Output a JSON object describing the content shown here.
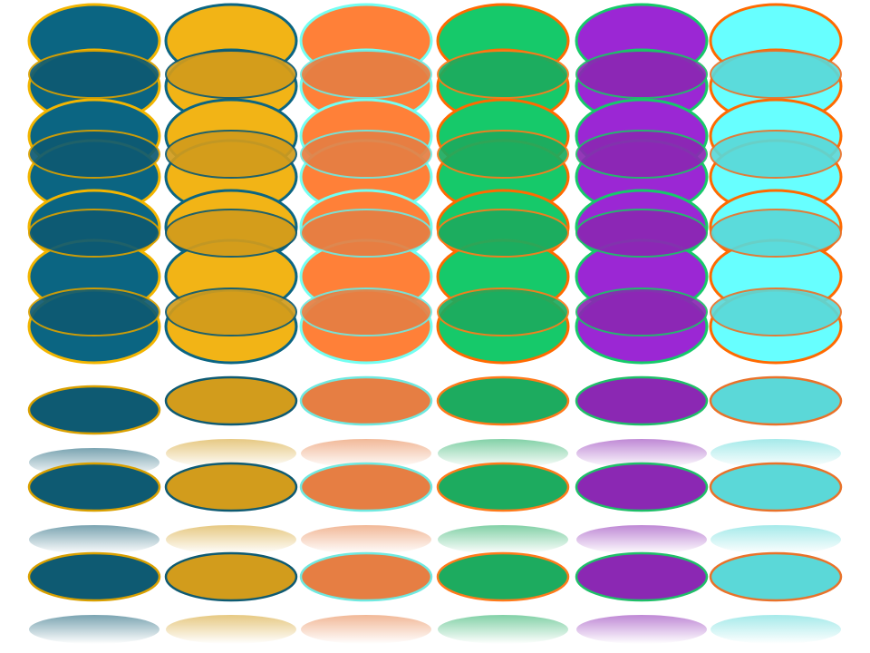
{
  "palette": [
    {
      "name": "teal",
      "fill": "#0b6582",
      "border": "#f2b500",
      "flat": "#0e5a72",
      "flat_border": "#d9a000"
    },
    {
      "name": "yellow",
      "fill": "#f2b416",
      "border": "#0b6582",
      "flat": "#d29c1c",
      "flat_border": "#0e5a72"
    },
    {
      "name": "orange",
      "fill": "#ff8038",
      "border": "#73fff2",
      "flat": "#e67e43",
      "flat_border": "#6fe9e0"
    },
    {
      "name": "green",
      "fill": "#16c96a",
      "border": "#ff6a00",
      "flat": "#1dab5f",
      "flat_border": "#ff7a1a"
    },
    {
      "name": "purple",
      "fill": "#9b27d4",
      "border": "#16c96a",
      "flat": "#8b28b3",
      "flat_border": "#1fbf68"
    },
    {
      "name": "aqua",
      "fill": "#67ffff",
      "border": "#ff6a00",
      "flat": "#5bd8d8",
      "flat_border": "#e9722a"
    }
  ],
  "columns": 6,
  "stacked_disc_rows": 7,
  "reflected_disc_rows": 3
}
